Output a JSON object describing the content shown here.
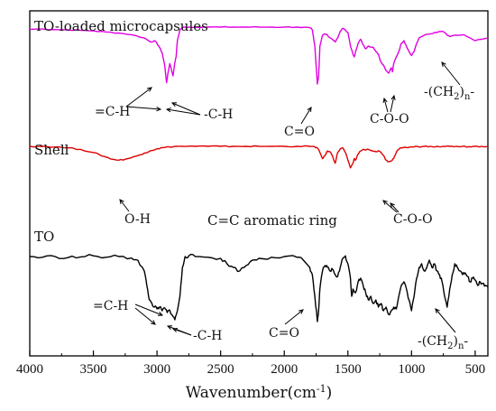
{
  "chart_data": {
    "type": "line",
    "title": "",
    "xlabel": "Wavenumber(cm",
    "xlabel_sup": "-1",
    "xlabel_end": ")",
    "ylabel": "",
    "xlim": [
      4000,
      400
    ],
    "x_reversed": true,
    "xticks": [
      4000,
      3500,
      3000,
      2500,
      2000,
      1500,
      1000,
      500
    ],
    "grid": false,
    "series": [
      {
        "name": "TO-loaded microcapsules",
        "color": "#e000e0",
        "x": [
          4000,
          3900,
          3800,
          3700,
          3600,
          3500,
          3400,
          3300,
          3200,
          3100,
          3050,
          3020,
          3000,
          2980,
          2960,
          2940,
          2925,
          2910,
          2900,
          2890,
          2875,
          2860,
          2850,
          2840,
          2820,
          2800,
          2780,
          2750,
          2700,
          2600,
          2500,
          2400,
          2300,
          2200,
          2100,
          2000,
          1900,
          1800,
          1780,
          1760,
          1740,
          1730,
          1720,
          1700,
          1680,
          1660,
          1640,
          1620,
          1600,
          1580,
          1560,
          1540,
          1520,
          1500,
          1480,
          1460,
          1450,
          1440,
          1420,
          1400,
          1380,
          1360,
          1340,
          1300,
          1280,
          1260,
          1240,
          1220,
          1200,
          1180,
          1160,
          1150,
          1140,
          1120,
          1100,
          1080,
          1060,
          1040,
          1020,
          1000,
          980,
          960,
          940,
          900,
          850,
          800,
          760,
          740,
          720,
          700,
          650,
          600,
          550,
          500,
          450,
          400
        ],
        "y": [
          0.92,
          0.93,
          0.91,
          0.9,
          0.88,
          0.86,
          0.82,
          0.78,
          0.72,
          0.6,
          0.45,
          0.5,
          0.4,
          0.25,
          0.05,
          -0.4,
          -1.05,
          -0.6,
          -0.35,
          -0.5,
          -0.8,
          -0.3,
          -0.1,
          0.5,
          0.9,
          0.98,
          1.0,
          1.0,
          1.0,
          1.0,
          1.0,
          1.0,
          1.0,
          1.0,
          1.0,
          1.0,
          1.0,
          0.98,
          0.9,
          0.3,
          -1.1,
          -0.8,
          0.3,
          0.7,
          0.75,
          0.7,
          0.6,
          0.55,
          0.45,
          0.6,
          0.85,
          0.95,
          0.9,
          0.8,
          0.3,
          0.0,
          -0.1,
          0.1,
          0.4,
          0.55,
          0.35,
          0.2,
          0.3,
          0.25,
          0.1,
          0.0,
          -0.3,
          -0.4,
          -0.6,
          -0.7,
          -0.5,
          -0.65,
          -0.35,
          -0.1,
          0.1,
          0.4,
          0.5,
          0.3,
          0.1,
          -0.05,
          0.1,
          0.4,
          0.6,
          0.7,
          0.75,
          0.8,
          0.85,
          0.8,
          0.7,
          0.65,
          0.7,
          0.72,
          0.62,
          0.5,
          0.55,
          0.6
        ]
      },
      {
        "name": "Shell",
        "color": "#e00000",
        "x": [
          4000,
          3900,
          3800,
          3700,
          3600,
          3500,
          3450,
          3400,
          3350,
          3300,
          3250,
          3200,
          3150,
          3100,
          3050,
          3000,
          2950,
          2900,
          2850,
          2800,
          2700,
          2600,
          2500,
          2400,
          2300,
          2200,
          2100,
          2000,
          1900,
          1800,
          1760,
          1740,
          1720,
          1700,
          1680,
          1660,
          1640,
          1620,
          1600,
          1580,
          1560,
          1540,
          1520,
          1500,
          1480,
          1460,
          1450,
          1440,
          1420,
          1400,
          1380,
          1360,
          1340,
          1320,
          1300,
          1280,
          1260,
          1240,
          1220,
          1200,
          1180,
          1160,
          1140,
          1120,
          1100,
          1080,
          1060,
          1040,
          1000,
          950,
          900,
          850,
          800,
          750,
          700,
          650,
          600,
          550,
          500,
          450,
          400
        ],
        "y": [
          1.0,
          1.0,
          0.98,
          0.95,
          0.9,
          0.8,
          0.72,
          0.65,
          0.58,
          0.55,
          0.58,
          0.63,
          0.7,
          0.78,
          0.86,
          0.92,
          0.96,
          0.98,
          1.0,
          1.0,
          1.0,
          1.0,
          1.0,
          1.0,
          1.0,
          1.0,
          1.0,
          1.0,
          1.0,
          1.0,
          0.98,
          0.95,
          0.8,
          0.6,
          0.7,
          0.85,
          0.82,
          0.68,
          0.45,
          0.8,
          0.92,
          0.95,
          0.8,
          0.55,
          0.3,
          0.45,
          0.6,
          0.55,
          0.75,
          0.85,
          0.9,
          0.88,
          0.9,
          0.86,
          0.84,
          0.82,
          0.86,
          0.8,
          0.7,
          0.55,
          0.5,
          0.52,
          0.6,
          0.8,
          0.9,
          0.95,
          0.97,
          0.96,
          0.98,
          0.99,
          1.0,
          1.0,
          1.0,
          1.0,
          1.0,
          1.0,
          1.0,
          0.99,
          1.0,
          1.0,
          1.0
        ]
      },
      {
        "name": "TO",
        "color": "#000000",
        "x": [
          4000,
          3900,
          3800,
          3700,
          3600,
          3500,
          3400,
          3300,
          3200,
          3150,
          3100,
          3080,
          3060,
          3040,
          3020,
          3000,
          2980,
          2960,
          2940,
          2920,
          2900,
          2880,
          2860,
          2840,
          2820,
          2800,
          2780,
          2750,
          2700,
          2600,
          2500,
          2450,
          2400,
          2350,
          2300,
          2250,
          2200,
          2100,
          2000,
          1900,
          1850,
          1800,
          1780,
          1760,
          1740,
          1730,
          1720,
          1700,
          1680,
          1660,
          1640,
          1620,
          1600,
          1580,
          1560,
          1540,
          1520,
          1500,
          1480,
          1470,
          1460,
          1440,
          1420,
          1400,
          1380,
          1360,
          1340,
          1320,
          1300,
          1280,
          1260,
          1240,
          1220,
          1200,
          1180,
          1160,
          1140,
          1120,
          1100,
          1080,
          1060,
          1040,
          1020,
          1000,
          980,
          960,
          940,
          920,
          900,
          880,
          860,
          840,
          820,
          800,
          780,
          760,
          740,
          720,
          700,
          680,
          660,
          640,
          620,
          600,
          580,
          560,
          540,
          520,
          500,
          480,
          460,
          440,
          420,
          400
        ],
        "y": [
          0.9,
          0.88,
          0.9,
          0.87,
          0.89,
          0.92,
          0.88,
          0.9,
          0.86,
          0.8,
          0.5,
          0.1,
          -0.3,
          -0.4,
          -0.5,
          -0.55,
          -0.5,
          -0.6,
          -0.52,
          -0.65,
          -0.58,
          -0.72,
          -0.85,
          -0.6,
          -0.2,
          0.6,
          0.9,
          0.92,
          0.9,
          0.88,
          0.85,
          0.7,
          0.6,
          0.5,
          0.65,
          0.8,
          0.85,
          0.88,
          0.9,
          0.88,
          0.8,
          0.6,
          0.4,
          -0.2,
          -0.9,
          -0.6,
          0.0,
          0.5,
          0.65,
          0.6,
          0.5,
          0.55,
          0.4,
          0.35,
          0.6,
          0.85,
          0.92,
          0.7,
          0.3,
          -0.2,
          0.0,
          -0.1,
          0.2,
          0.3,
          0.1,
          -0.1,
          -0.3,
          -0.2,
          -0.4,
          -0.3,
          -0.5,
          -0.4,
          -0.6,
          -0.5,
          -0.7,
          -0.6,
          -0.5,
          -0.55,
          -0.2,
          0.1,
          0.2,
          0.0,
          -0.3,
          -0.6,
          -0.2,
          0.3,
          0.6,
          0.7,
          0.5,
          0.6,
          0.8,
          0.6,
          0.7,
          0.5,
          0.4,
          0.2,
          -0.2,
          -0.5,
          0.0,
          0.4,
          0.7,
          0.6,
          0.5,
          0.4,
          0.45,
          0.35,
          0.2,
          0.3,
          0.25,
          0.1,
          0.2,
          0.15,
          0.1,
          0.05
        ]
      }
    ],
    "labels": {
      "mc_title": "TO-loaded microcapsules",
      "shell_title": "Shell",
      "to_title": "TO",
      "mc_ch_eq": "=C-H",
      "mc_ch": "-C-H",
      "mc_co": "C=O",
      "mc_coo": "C-O-O",
      "mc_ch2_main": "-(CH",
      "mc_ch2_sub": "2",
      "mc_ch2_close": ")",
      "mc_ch2_n": "n",
      "mc_ch2_dash": "-",
      "shell_oh": "O-H",
      "shell_arom": "C=C aromatic ring",
      "shell_coo": "C-O-O",
      "to_ch_eq": "=C-H",
      "to_ch": "-C-H",
      "to_co": "C=O",
      "to_ch2_main": "-(CH",
      "to_ch2_sub": "2",
      "to_ch2_close": ")",
      "to_ch2_n": "n",
      "to_ch2_dash": "-"
    }
  }
}
